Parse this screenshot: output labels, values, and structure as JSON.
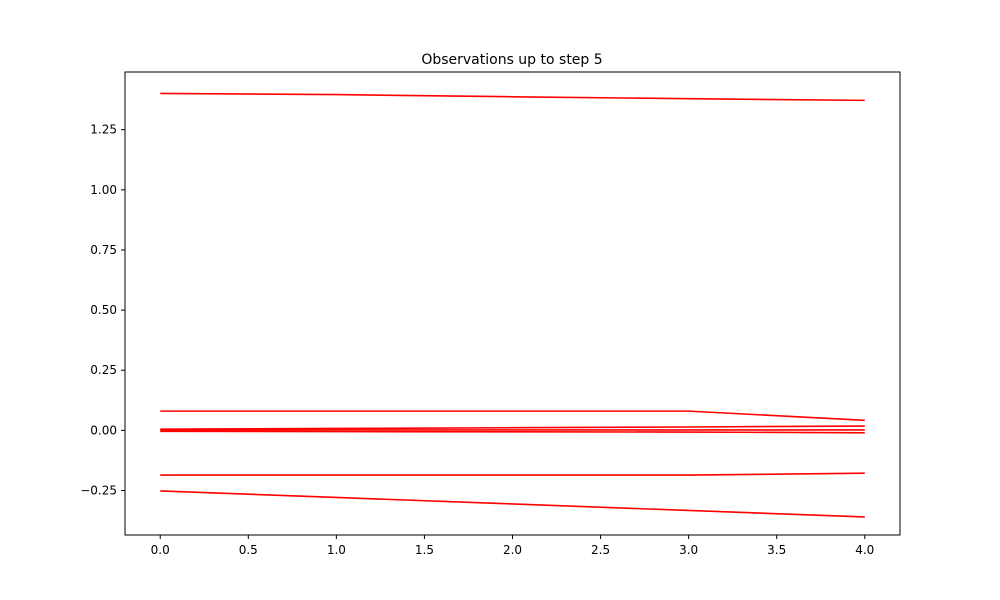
{
  "chart_data": {
    "type": "line",
    "title": "Observations up to step 5",
    "xlabel": "",
    "ylabel": "",
    "x": [
      0,
      1,
      2,
      3,
      4
    ],
    "xlim": [
      -0.2,
      4.2
    ],
    "ylim": [
      -0.435,
      1.49
    ],
    "xticks": [
      0.0,
      0.5,
      1.0,
      1.5,
      2.0,
      2.5,
      3.0,
      3.5,
      4.0
    ],
    "xtick_labels": [
      "0.0",
      "0.5",
      "1.0",
      "1.5",
      "2.0",
      "2.5",
      "3.0",
      "3.5",
      "4.0"
    ],
    "yticks": [
      -0.25,
      0.0,
      0.25,
      0.5,
      0.75,
      1.0,
      1.25
    ],
    "ytick_labels": [
      "−0.25",
      "0.00",
      "0.25",
      "0.50",
      "0.75",
      "1.00",
      "1.25"
    ],
    "grid": false,
    "legend": "none",
    "line_color": "#ff0000",
    "series": [
      {
        "values": [
          1.401,
          1.396,
          1.387,
          1.379,
          1.372
        ]
      },
      {
        "values": [
          0.08,
          0.08,
          0.08,
          0.08,
          0.042
        ]
      },
      {
        "values": [
          0.005,
          0.008,
          0.011,
          0.014,
          0.018
        ]
      },
      {
        "values": [
          0.002,
          0.002,
          0.002,
          0.002,
          0.002
        ]
      },
      {
        "values": [
          -0.004,
          -0.005,
          -0.006,
          -0.007,
          -0.01
        ]
      },
      {
        "values": [
          -0.186,
          -0.186,
          -0.186,
          -0.186,
          -0.178
        ]
      },
      {
        "values": [
          -0.252,
          -0.279,
          -0.306,
          -0.333,
          -0.36
        ]
      }
    ]
  }
}
